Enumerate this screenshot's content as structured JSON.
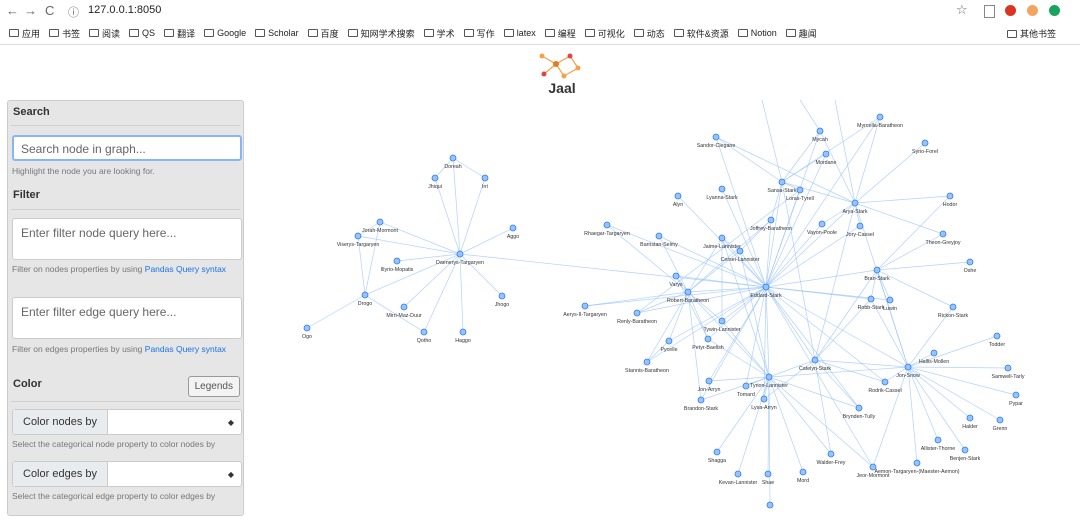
{
  "browser": {
    "url": "127.0.0.1:8050",
    "bookmarks": [
      "应用",
      "书签",
      "阅读",
      "QS",
      "翻译",
      "Google",
      "Scholar",
      "百度",
      "知网学术搜索",
      "学术",
      "写作",
      "latex",
      "编程",
      "可视化",
      "动态",
      "软件&资源",
      "Notion",
      "趣闻"
    ],
    "other_bookmarks": "其他书签"
  },
  "app": {
    "title": "Jaal",
    "sidebar": {
      "search": {
        "heading": "Search",
        "placeholder": "Search node in graph...",
        "help": "Highlight the node you are looking for."
      },
      "filter": {
        "heading": "Filter",
        "node_placeholder": "Enter filter node query here...",
        "node_help": "Filter on nodes properties by using ",
        "link": "Pandas Query syntax",
        "edge_placeholder": "Enter filter edge query here...",
        "edge_help": "Filter on edges properties by using ",
        "edge_link": "Pandas Query syntax"
      },
      "color": {
        "heading": "Color",
        "button": "Legends",
        "nodes_label": "Color nodes by",
        "nodes_help": "Select the categorical node property to color nodes by",
        "edges_label": "Color edges by",
        "edges_help": "Select the categorical edge property to color edges by"
      }
    }
  },
  "graph": {
    "nodes": [
      "Doreah",
      "Jhiqui",
      "Irri",
      "Jorah-Mormont",
      "Aggo",
      "Viserys-Targaryen",
      "Daenerys-Targaryen",
      "Illyrio-Mopatis",
      "Drogo",
      "Jhogo",
      "Mirri-Maz-Duur",
      "Ogo",
      "Qotho",
      "Haggo",
      "Myrcella-Baratheon",
      "Sandor-Clegane",
      "Mycah",
      "Syrio-Forel",
      "Mordane",
      "Sansa-Stark",
      "Loras-Tyrell",
      "Lyanna-Stark",
      "Alyn",
      "Arya-Stark",
      "Hodor",
      "Joffrey-Baratheon",
      "Vayon-Poole",
      "Jory-Cassel",
      "Rhaegar-Targaryen",
      "Barristan-Selmy",
      "Jaime-Lannister",
      "Theon-Greyjoy",
      "Cersei-Lannister",
      "Oshe",
      "Bran-Stark",
      "Varys",
      "Eddard-Stark",
      "Robert-Baratheon",
      "Robb-Stark",
      "Luwin",
      "Aerys-II-Targaryen",
      "Rickon-Stark",
      "Renly-Baratheon",
      "Tywin-Lannister",
      "Todder",
      "Pycelle",
      "Petyr-Baelish",
      "Hallis-Mollen",
      "Catelyn-Stark",
      "Stannis-Baratheon",
      "Jon-Snow",
      "Samwell-Tarly",
      "Tyrion-Lannister",
      "Rodrik-Cassel",
      "Jon-Arryn",
      "Tomard",
      "Pypar",
      "Brandon-Stark",
      "Lysa-Arryn",
      "Halder",
      "Grenn",
      "Allister-Thorne",
      "Benjen-Stark",
      "Brynden-Tully",
      "Shagga",
      "Walder-Frey",
      "Aemon-Targaryen-(Maester-Aemon)",
      "Jeor-Mormont",
      "Kevan-Lannister",
      "Shae",
      "Mord"
    ]
  }
}
